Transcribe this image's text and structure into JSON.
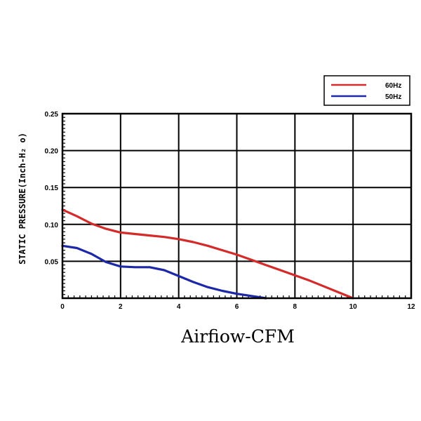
{
  "chart_data": {
    "type": "line",
    "title": "",
    "xlabel": "Airfiow-CFM",
    "ylabel": "STATIC PRESSURE(Inch-H₂ o)",
    "xlim": [
      0,
      12
    ],
    "ylim": [
      0,
      0.25
    ],
    "x_ticks": [
      "0",
      "2",
      "4",
      "6",
      "8",
      "10",
      "12"
    ],
    "y_ticks": [
      "0.05",
      "0.10",
      "0.15",
      "0.20",
      "0.25"
    ],
    "grid": true,
    "legend_position": "top-right",
    "series": [
      {
        "name": "60Hz",
        "color": "#d42a2a",
        "x": [
          0,
          0.5,
          1,
          1.5,
          2,
          2.5,
          3,
          3.5,
          4,
          4.5,
          5,
          5.5,
          6,
          6.5,
          7,
          7.5,
          8,
          8.5,
          9,
          9.5,
          10
        ],
        "y": [
          0.12,
          0.111,
          0.101,
          0.094,
          0.089,
          0.087,
          0.085,
          0.083,
          0.08,
          0.076,
          0.071,
          0.065,
          0.059,
          0.052,
          0.045,
          0.038,
          0.031,
          0.024,
          0.016,
          0.008,
          0.0
        ]
      },
      {
        "name": "50Hz",
        "color": "#1c28a8",
        "x": [
          0,
          0.5,
          1,
          1.5,
          2,
          2.5,
          3,
          3.5,
          4,
          4.5,
          5,
          5.5,
          6,
          6.5,
          7
        ],
        "y": [
          0.071,
          0.068,
          0.06,
          0.049,
          0.043,
          0.042,
          0.042,
          0.038,
          0.03,
          0.022,
          0.015,
          0.01,
          0.006,
          0.003,
          0.0
        ]
      }
    ]
  }
}
